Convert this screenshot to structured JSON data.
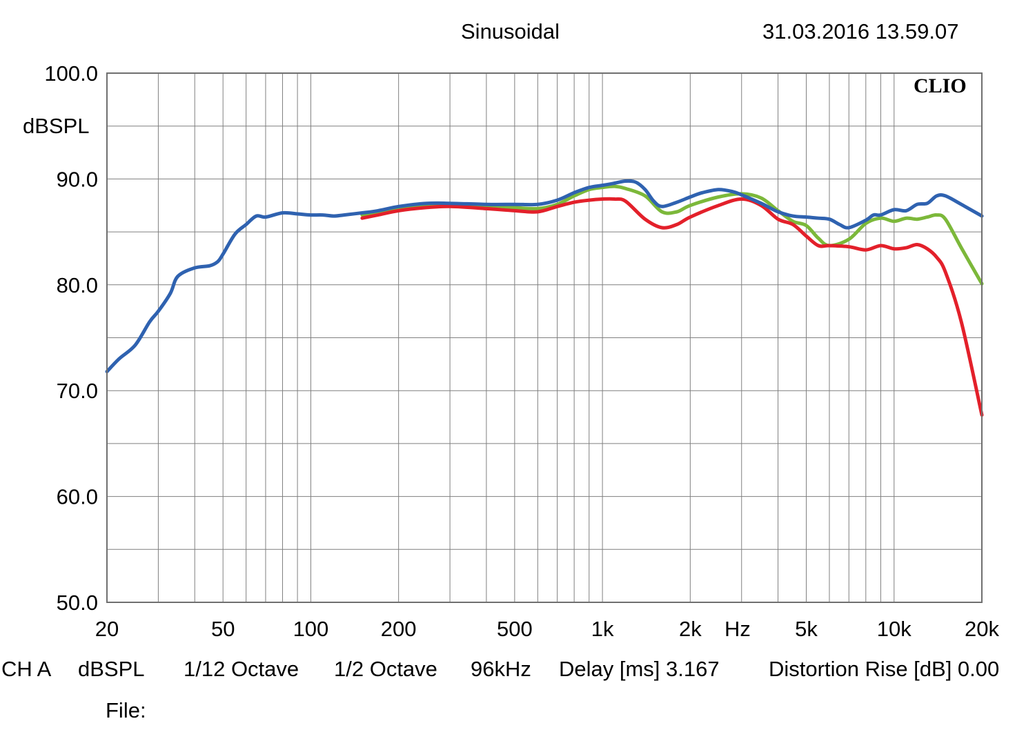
{
  "header": {
    "title": "Sinusoidal",
    "timestamp": "31.03.2016 13.59.07"
  },
  "brand": "CLIO",
  "footer": {
    "channel": "CH A",
    "unit": "dBSPL",
    "smoothing": "1/12 Octave",
    "octave": "1/2 Octave",
    "sample_rate": "96kHz",
    "delay": "Delay [ms] 3.167",
    "distortion": "Distortion Rise [dB] 0.00",
    "file_label": "File:"
  },
  "chart_data": {
    "type": "line",
    "xscale": "log",
    "xlim": [
      20,
      20000
    ],
    "ylim": [
      50,
      100
    ],
    "ylabel": "dBSPL",
    "xlabel": "Hz",
    "grid": true,
    "y_ticks": [
      "100.0",
      "90.0",
      "80.0",
      "70.0",
      "60.0",
      "50.0"
    ],
    "y_tick_values": [
      100,
      90,
      80,
      70,
      60,
      50
    ],
    "x_ticks": [
      "20",
      "50",
      "100",
      "200",
      "500",
      "1k",
      "2k",
      "5k",
      "10k",
      "20k"
    ],
    "x_tick_values": [
      20,
      50,
      100,
      200,
      500,
      1000,
      2000,
      5000,
      10000,
      20000
    ],
    "colors": {
      "blue": "#2f62b0",
      "green": "#7cb83a",
      "red": "#e3202a",
      "grid": "#7f7f7f"
    },
    "series": [
      {
        "color": "green",
        "x": [
          150,
          200,
          250,
          300,
          400,
          500,
          600,
          700,
          800,
          900,
          1000,
          1100,
          1200,
          1400,
          1600,
          1800,
          2000,
          2500,
          3000,
          3500,
          4000,
          4500,
          5000,
          5500,
          6000,
          7000,
          8000,
          9000,
          10000,
          11000,
          12000,
          13000,
          14000,
          15000,
          17000,
          20000
        ],
        "y": [
          86.6,
          87.3,
          87.6,
          87.6,
          87.5,
          87.3,
          87.2,
          87.6,
          88.4,
          89.0,
          89.2,
          89.3,
          89.1,
          88.4,
          86.9,
          86.9,
          87.5,
          88.3,
          88.6,
          88.2,
          87.0,
          86.0,
          85.6,
          84.4,
          83.7,
          84.3,
          85.8,
          86.3,
          86.0,
          86.3,
          86.2,
          86.4,
          86.6,
          86.2,
          83.5,
          80.1
        ]
      },
      {
        "color": "red",
        "x": [
          150,
          170,
          200,
          250,
          300,
          400,
          500,
          600,
          700,
          800,
          900,
          1000,
          1100,
          1200,
          1400,
          1600,
          1800,
          2000,
          2500,
          3000,
          3500,
          4000,
          4500,
          5000,
          5500,
          6000,
          7000,
          8000,
          9000,
          10000,
          11000,
          12000,
          13000,
          14000,
          15000,
          17000,
          20000
        ],
        "y": [
          86.3,
          86.6,
          87.0,
          87.3,
          87.4,
          87.2,
          87.0,
          86.9,
          87.4,
          87.8,
          88.0,
          88.1,
          88.1,
          87.9,
          86.2,
          85.4,
          85.7,
          86.4,
          87.5,
          88.1,
          87.5,
          86.2,
          85.7,
          84.6,
          83.7,
          83.7,
          83.6,
          83.3,
          83.7,
          83.4,
          83.5,
          83.8,
          83.4,
          82.6,
          81.2,
          76.5,
          67.7
        ]
      },
      {
        "color": "blue",
        "x": [
          20,
          22,
          25,
          28,
          30,
          33,
          35,
          40,
          45,
          48,
          50,
          55,
          60,
          65,
          70,
          80,
          90,
          100,
          110,
          120,
          130,
          150,
          170,
          200,
          250,
          300,
          400,
          500,
          600,
          700,
          800,
          900,
          1000,
          1100,
          1200,
          1300,
          1400,
          1500,
          1600,
          1800,
          2000,
          2200,
          2500,
          2800,
          3000,
          3500,
          4000,
          4500,
          5000,
          5500,
          6000,
          6500,
          7000,
          8000,
          8500,
          9000,
          10000,
          11000,
          12000,
          13000,
          14000,
          15000,
          17000,
          20000
        ],
        "y": [
          71.8,
          73.0,
          74.3,
          76.5,
          77.5,
          79.2,
          80.8,
          81.6,
          81.8,
          82.2,
          82.9,
          84.8,
          85.7,
          86.5,
          86.4,
          86.8,
          86.7,
          86.6,
          86.6,
          86.5,
          86.6,
          86.8,
          87.0,
          87.4,
          87.7,
          87.7,
          87.6,
          87.6,
          87.6,
          88.0,
          88.7,
          89.2,
          89.4,
          89.6,
          89.8,
          89.7,
          89.0,
          87.9,
          87.4,
          87.8,
          88.3,
          88.7,
          89.0,
          88.8,
          88.5,
          87.7,
          86.9,
          86.5,
          86.4,
          86.3,
          86.2,
          85.7,
          85.4,
          86.1,
          86.6,
          86.6,
          87.1,
          87.0,
          87.6,
          87.7,
          88.4,
          88.4,
          87.6,
          86.5
        ]
      }
    ]
  }
}
